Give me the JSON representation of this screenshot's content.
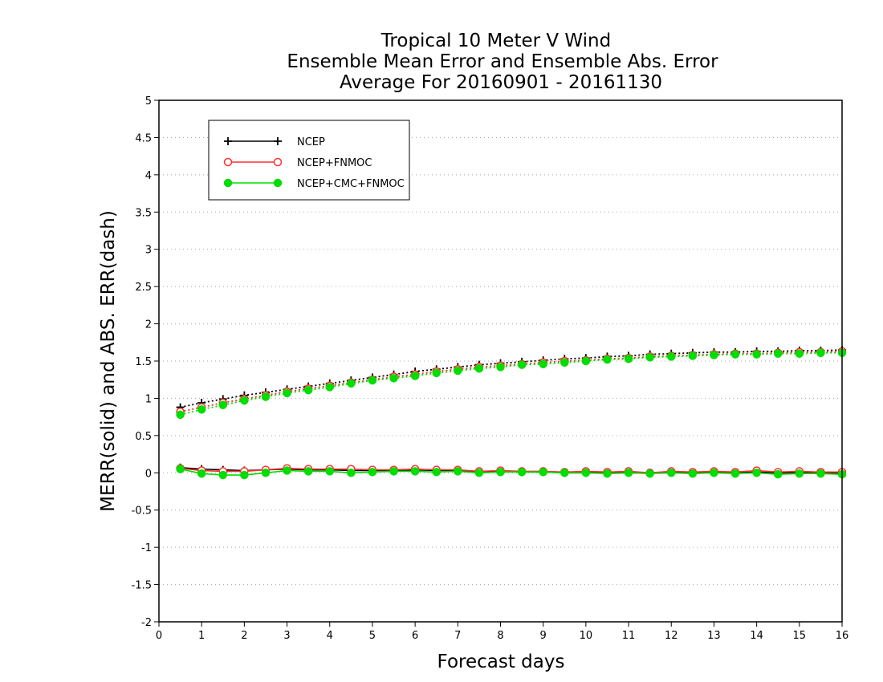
{
  "chart_data": {
    "type": "line",
    "title": [
      "Tropical 10 Meter V Wind",
      "Ensemble Mean Error and Ensemble Abs. Error",
      "Average For 20160901 - 20161130"
    ],
    "xlabel": "Forecast days",
    "ylabel": "MERR(solid) and ABS. ERR(dash)",
    "xlim": [
      0,
      16
    ],
    "ylim": [
      -2,
      5
    ],
    "xticks": [
      0,
      1,
      2,
      3,
      4,
      5,
      6,
      7,
      8,
      9,
      10,
      11,
      12,
      13,
      14,
      15,
      16
    ],
    "yticks": [
      -2,
      -1.5,
      -1,
      -0.5,
      0,
      0.5,
      1,
      1.5,
      2,
      2.5,
      3,
      3.5,
      4,
      4.5,
      5
    ],
    "ytick_labels": [
      "-2",
      "-1.5",
      "-1",
      "-0.5",
      "0",
      "0.5",
      "1",
      "1.5",
      "2",
      "2.5",
      "3",
      "3.5",
      "4",
      "4.5",
      "5"
    ],
    "grid": "horizontal-dotted",
    "legend_position": "top-left",
    "x": [
      0.5,
      1,
      1.5,
      2,
      2.5,
      3,
      3.5,
      4,
      4.5,
      5,
      5.5,
      6,
      6.5,
      7,
      7.5,
      8,
      8.5,
      9,
      9.5,
      10,
      10.5,
      11,
      11.5,
      12,
      12.5,
      13,
      13.5,
      14,
      14.5,
      15,
      15.5,
      16
    ],
    "series": [
      {
        "name": "NCEP",
        "color": "#000000",
        "marker": "plus",
        "merr": [
          0.07,
          0.05,
          0.04,
          0.03,
          0.04,
          0.05,
          0.04,
          0.04,
          0.03,
          0.03,
          0.03,
          0.04,
          0.03,
          0.03,
          0.01,
          0.02,
          0.01,
          0.01,
          0.0,
          0.0,
          0.0,
          0.0,
          0.0,
          0.01,
          0.0,
          0.01,
          0.0,
          0.01,
          0.0,
          0.0,
          0.0,
          -0.01
        ],
        "abs_err": [
          0.88,
          0.94,
          0.99,
          1.04,
          1.08,
          1.12,
          1.16,
          1.2,
          1.24,
          1.28,
          1.32,
          1.36,
          1.39,
          1.42,
          1.45,
          1.47,
          1.49,
          1.51,
          1.53,
          1.54,
          1.56,
          1.57,
          1.59,
          1.6,
          1.61,
          1.62,
          1.62,
          1.63,
          1.63,
          1.64,
          1.64,
          1.65
        ]
      },
      {
        "name": "NCEP+FNMOC",
        "color": "#ff3030",
        "marker": "open-circle",
        "merr": [
          0.06,
          0.03,
          0.02,
          0.02,
          0.04,
          0.06,
          0.05,
          0.05,
          0.05,
          0.04,
          0.04,
          0.05,
          0.04,
          0.04,
          0.02,
          0.03,
          0.02,
          0.02,
          0.01,
          0.02,
          0.01,
          0.02,
          0.0,
          0.02,
          0.01,
          0.02,
          0.01,
          0.03,
          0.01,
          0.02,
          0.01,
          0.01
        ],
        "abs_err": [
          0.82,
          0.88,
          0.94,
          0.99,
          1.04,
          1.09,
          1.13,
          1.17,
          1.21,
          1.25,
          1.29,
          1.32,
          1.36,
          1.39,
          1.42,
          1.44,
          1.46,
          1.48,
          1.5,
          1.51,
          1.53,
          1.54,
          1.56,
          1.57,
          1.58,
          1.59,
          1.6,
          1.6,
          1.61,
          1.62,
          1.62,
          1.63
        ]
      },
      {
        "name": "NCEP+CMC+FNMOC",
        "color": "#00dd00",
        "marker": "filled-circle",
        "merr": [
          0.05,
          -0.01,
          -0.03,
          -0.03,
          0.0,
          0.03,
          0.02,
          0.02,
          0.0,
          0.01,
          0.02,
          0.02,
          0.01,
          0.02,
          0.0,
          0.01,
          0.01,
          0.01,
          0.0,
          0.0,
          -0.01,
          0.0,
          -0.01,
          0.0,
          -0.01,
          0.0,
          -0.01,
          0.0,
          -0.02,
          -0.01,
          -0.01,
          -0.02
        ],
        "abs_err": [
          0.78,
          0.85,
          0.91,
          0.97,
          1.02,
          1.07,
          1.11,
          1.15,
          1.2,
          1.24,
          1.27,
          1.3,
          1.34,
          1.37,
          1.4,
          1.42,
          1.45,
          1.46,
          1.48,
          1.5,
          1.52,
          1.53,
          1.55,
          1.56,
          1.57,
          1.58,
          1.59,
          1.59,
          1.6,
          1.6,
          1.61,
          1.61
        ]
      }
    ]
  }
}
